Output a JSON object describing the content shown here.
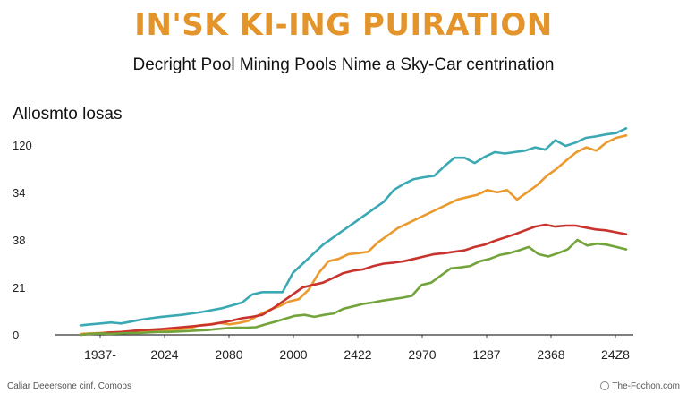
{
  "chart_data": {
    "type": "line",
    "title": "IN'SK KI-ING PUIRATION",
    "subtitle": "Decright Pool Mining Pools Nime a Sky-Car centrination",
    "ylabel": "Allosmto losas",
    "xlabel": "",
    "x_tick_labels": [
      "1937-",
      "2024",
      "2080",
      "2000",
      "2422",
      "2970",
      "1287",
      "2368",
      "24Z8"
    ],
    "y_tick_labels": [
      "0",
      "21",
      "38",
      "34",
      "120"
    ],
    "y_tick_values": [
      0,
      1,
      2,
      3,
      4
    ],
    "ylim": [
      0,
      4.3
    ],
    "grid": false,
    "legend": "none",
    "series": [
      {
        "color": "#3ba9b4",
        "values": [
          0.2,
          0.22,
          0.24,
          0.26,
          0.24,
          0.28,
          0.32,
          0.35,
          0.38,
          0.4,
          0.42,
          0.45,
          0.48,
          0.52,
          0.56,
          0.62,
          0.68,
          0.85,
          0.9,
          0.9,
          0.9,
          1.3,
          1.5,
          1.7,
          1.9,
          2.05,
          2.2,
          2.35,
          2.5,
          2.65,
          2.8,
          3.05,
          3.18,
          3.28,
          3.32,
          3.35,
          3.55,
          3.73,
          3.73,
          3.62,
          3.75,
          3.85,
          3.82,
          3.85,
          3.88,
          3.95,
          3.9,
          4.1,
          3.98,
          4.05,
          4.15,
          4.18,
          4.22,
          4.25,
          4.35
        ]
      },
      {
        "color": "#eb9a2e",
        "values": [
          0.02,
          0.03,
          0.04,
          0.05,
          0.05,
          0.06,
          0.07,
          0.08,
          0.09,
          0.1,
          0.12,
          0.14,
          0.2,
          0.22,
          0.25,
          0.22,
          0.25,
          0.3,
          0.42,
          0.52,
          0.6,
          0.7,
          0.75,
          0.95,
          1.3,
          1.55,
          1.6,
          1.7,
          1.72,
          1.75,
          1.95,
          2.1,
          2.25,
          2.35,
          2.45,
          2.55,
          2.65,
          2.75,
          2.85,
          2.9,
          2.95,
          3.05,
          3.0,
          3.05,
          2.85,
          3.0,
          3.15,
          3.35,
          3.5,
          3.68,
          3.85,
          3.95,
          3.88,
          4.05,
          4.15,
          4.2
        ]
      },
      {
        "color": "#c8342d",
        "values": [
          0.0,
          0.02,
          0.03,
          0.05,
          0.06,
          0.08,
          0.1,
          0.11,
          0.12,
          0.14,
          0.16,
          0.18,
          0.2,
          0.22,
          0.26,
          0.3,
          0.35,
          0.38,
          0.42,
          0.55,
          0.7,
          0.85,
          1.0,
          1.05,
          1.1,
          1.2,
          1.3,
          1.35,
          1.38,
          1.45,
          1.5,
          1.52,
          1.55,
          1.6,
          1.65,
          1.7,
          1.72,
          1.75,
          1.78,
          1.85,
          1.9,
          1.98,
          2.05,
          2.12,
          2.2,
          2.28,
          2.32,
          2.28,
          2.3,
          2.3,
          2.26,
          2.22,
          2.2,
          2.16,
          2.12
        ]
      },
      {
        "color": "#73a43b",
        "values": [
          0.0,
          0.02,
          0.03,
          0.02,
          0.03,
          0.04,
          0.04,
          0.05,
          0.06,
          0.06,
          0.07,
          0.08,
          0.09,
          0.1,
          0.12,
          0.14,
          0.15,
          0.15,
          0.16,
          0.22,
          0.28,
          0.34,
          0.4,
          0.42,
          0.38,
          0.42,
          0.45,
          0.55,
          0.6,
          0.65,
          0.68,
          0.72,
          0.75,
          0.78,
          0.82,
          1.05,
          1.1,
          1.25,
          1.4,
          1.42,
          1.45,
          1.55,
          1.6,
          1.68,
          1.72,
          1.78,
          1.85,
          1.7,
          1.65,
          1.72,
          1.8,
          2.0,
          1.88,
          1.92,
          1.9,
          1.85,
          1.8
        ]
      }
    ]
  },
  "footer": {
    "left": "Caliar Deeersone cinf, Comops",
    "right": "The-Fochon.com"
  }
}
